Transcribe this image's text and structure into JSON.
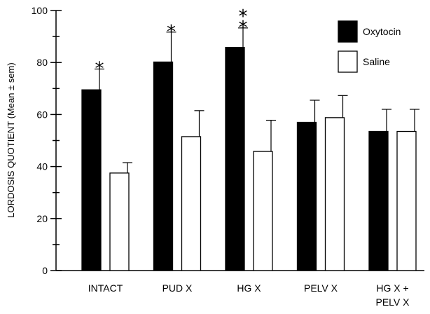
{
  "chart_data": {
    "type": "bar",
    "title": "",
    "xlabel": "",
    "ylabel": "LORDOSIS QUOTIENT (Mean ± sem)",
    "ylim": [
      0,
      100
    ],
    "yticks": [
      0,
      20,
      40,
      60,
      80,
      100
    ],
    "categories": [
      {
        "lines": [
          "INTACT"
        ]
      },
      {
        "lines": [
          "PUD X"
        ]
      },
      {
        "lines": [
          "HG X"
        ]
      },
      {
        "lines": [
          "PELV X"
        ]
      },
      {
        "lines": [
          "HG X +",
          "PELV X"
        ]
      }
    ],
    "series": [
      {
        "name": "Oxytocin",
        "color": "#000000",
        "values": [
          69.5,
          80.2,
          85.8,
          57.0,
          53.5
        ],
        "errors": [
          8.0,
          11.5,
          7.5,
          8.5,
          8.5
        ]
      },
      {
        "name": "Saline",
        "color": "#ffffff",
        "values": [
          37.5,
          51.5,
          45.8,
          58.8,
          53.5
        ],
        "errors": [
          4.0,
          10.0,
          12.0,
          8.5,
          8.5
        ]
      }
    ],
    "significance": [
      {
        "category": 0,
        "series": 0,
        "marks": [
          "*"
        ]
      },
      {
        "category": 1,
        "series": 0,
        "marks": [
          "*"
        ]
      },
      {
        "category": 2,
        "series": 0,
        "marks": [
          "*",
          "*"
        ]
      }
    ],
    "legend": {
      "position": "top-right"
    },
    "grid": false
  }
}
